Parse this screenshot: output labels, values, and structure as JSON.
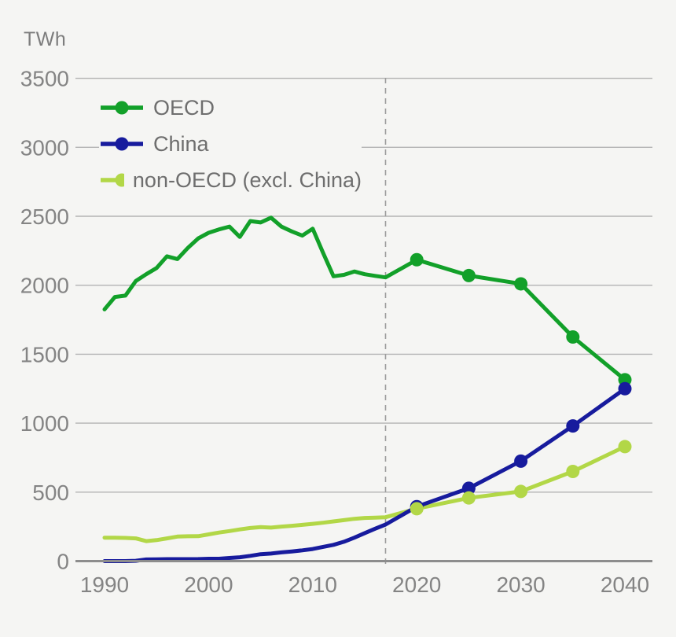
{
  "unit_label": "TWh",
  "legend": [
    {
      "id": "oecd",
      "name": "OECD",
      "color": "#12a029"
    },
    {
      "id": "china",
      "name": "China",
      "color": "#171b9d"
    },
    {
      "id": "non-oecd",
      "name": "non-OECD (excl. China)",
      "color": "#b2d747"
    }
  ],
  "colors": {
    "background": "#f5f5f3",
    "gridline": "#b3b3b3",
    "axis_line": "#8d8d8d",
    "tick_label": "#848484",
    "divider_dash": "#9c9c9c"
  },
  "chart_data": {
    "type": "line",
    "title": "",
    "ylabel": "TWh",
    "xlabel": "",
    "grid": true,
    "legend_position": "top-left",
    "xlim": [
      1990,
      2040
    ],
    "ylim": [
      0,
      3500
    ],
    "x_ticks": [
      1990,
      2000,
      2010,
      2020,
      2030,
      2040
    ],
    "y_ticks": [
      0,
      500,
      1000,
      1500,
      2000,
      2500,
      3000,
      3500
    ],
    "projection_divider_year": 2017,
    "marker_years": [
      2020,
      2025,
      2030,
      2035,
      2040
    ],
    "x": [
      1990,
      1991,
      1992,
      1993,
      1994,
      1995,
      1996,
      1997,
      1998,
      1999,
      2000,
      2001,
      2002,
      2003,
      2004,
      2005,
      2006,
      2007,
      2008,
      2009,
      2010,
      2011,
      2012,
      2013,
      2014,
      2015,
      2016,
      2017,
      2020,
      2025,
      2030,
      2035,
      2040
    ],
    "series": [
      {
        "id": "non-oecd",
        "name": "non-OECD (excl. China)",
        "color": "#b2d747",
        "values": [
          170,
          170,
          168,
          165,
          145,
          152,
          165,
          178,
          180,
          181,
          194,
          207,
          218,
          230,
          240,
          247,
          243,
          250,
          256,
          263,
          270,
          278,
          288,
          297,
          307,
          313,
          315,
          318,
          380,
          458,
          505,
          650,
          830
        ]
      },
      {
        "id": "china",
        "name": "China",
        "color": "#171b9d",
        "values": [
          0,
          0,
          0,
          2,
          12,
          13,
          14,
          14,
          14,
          15,
          17,
          17,
          23,
          28,
          38,
          50,
          55,
          63,
          70,
          78,
          88,
          103,
          118,
          140,
          170,
          203,
          235,
          265,
          395,
          528,
          725,
          980,
          1250
        ]
      },
      {
        "id": "oecd",
        "name": "OECD",
        "color": "#12a029",
        "values": [
          1825,
          1915,
          1925,
          2030,
          2080,
          2125,
          2210,
          2190,
          2270,
          2340,
          2380,
          2405,
          2425,
          2350,
          2465,
          2455,
          2490,
          2425,
          2390,
          2360,
          2410,
          2235,
          2065,
          2075,
          2100,
          2080,
          2068,
          2057,
          2185,
          2070,
          2010,
          1625,
          1315
        ]
      }
    ]
  }
}
